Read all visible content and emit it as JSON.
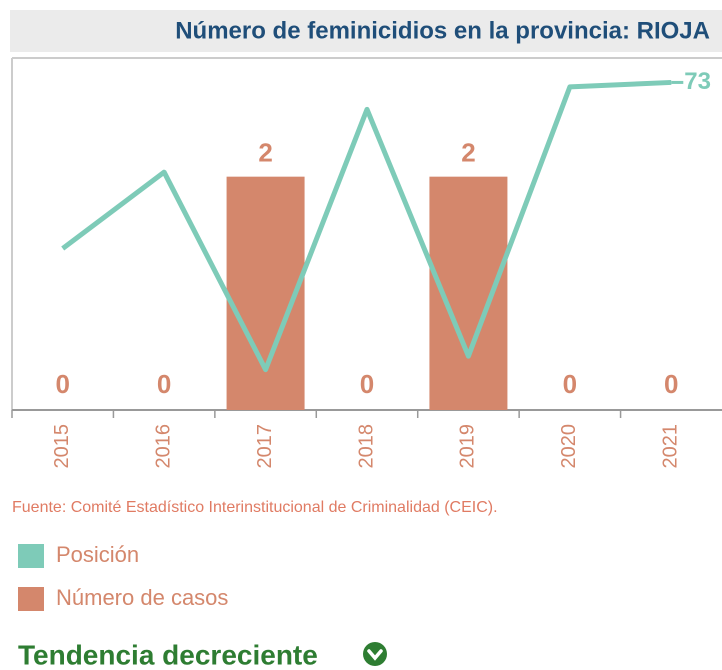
{
  "chart_data": {
    "type": "bar",
    "title": "Número de feminicidios en la provincia: RIOJA",
    "categories": [
      "2015",
      "2016",
      "2017",
      "2018",
      "2019",
      "2020",
      "2021"
    ],
    "series": [
      {
        "name": "Posición",
        "type": "line",
        "axis": "y2",
        "color": "#7ecbb8",
        "values": [
          36,
          53,
          9,
          67,
          12,
          72,
          73
        ]
      },
      {
        "name": "Número de casos",
        "type": "bar",
        "color": "#d4876c",
        "values": [
          0,
          0,
          2,
          0,
          2,
          0,
          0
        ]
      }
    ],
    "ylim": [
      0,
      3
    ],
    "y2lim": [
      0,
      78
    ],
    "source": "Fuente: Comité Estadístico Interinstitucional de Criminalidad (CEIC).",
    "annotation": "Tendencia decreciente"
  }
}
